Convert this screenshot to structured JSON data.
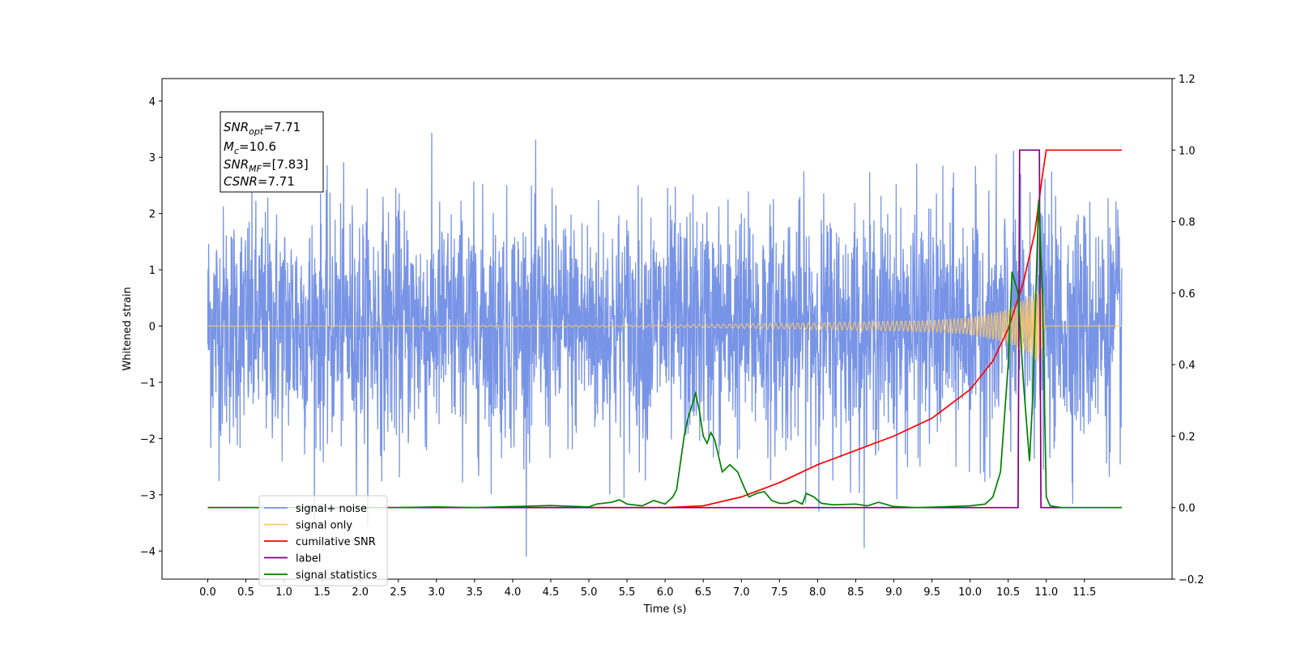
{
  "chart_data": {
    "type": "line",
    "title": "",
    "xlabel": "Time (s)",
    "ylabel": "Whitened strain",
    "xlim": [
      -0.6,
      12.65
    ],
    "ylim": [
      -4.5,
      4.4
    ],
    "y2lim": [
      -0.2,
      1.2
    ],
    "xticks": [
      "0.0",
      "0.5",
      "1.0",
      "1.5",
      "2.0",
      "2.5",
      "3.0",
      "3.5",
      "4.0",
      "4.5",
      "5.0",
      "5.5",
      "6.0",
      "6.5",
      "7.0",
      "7.5",
      "8.0",
      "8.5",
      "9.0",
      "9.5",
      "10.0",
      "10.5",
      "11.0",
      "11.5"
    ],
    "yticks": [
      "4",
      "3",
      "2",
      "1",
      "0",
      "−1",
      "−2",
      "−3",
      "−4"
    ],
    "y2ticks": [
      "1.2",
      "1.0",
      "0.8",
      "0.6",
      "0.4",
      "0.2",
      "0.0",
      "−0.2"
    ],
    "grid": false,
    "legend_position": "lower-left",
    "info_box": {
      "snr_opt": {
        "base": "SNR",
        "sub": "opt",
        "value": "=7.71"
      },
      "mc": {
        "base": "M",
        "sub": "c",
        "value": "=10.6"
      },
      "snr_mf": {
        "base": "SNR",
        "sub": "MF",
        "value": "=[7.83]"
      },
      "csnr": {
        "base": "CSNR",
        "sub": "",
        "value": "=7.71"
      }
    },
    "series": [
      {
        "name": "signal+ noise",
        "color": "#7894e6",
        "axis": "left",
        "x_range": [
          0,
          11.99
        ],
        "noise_sigma": 1.0
      },
      {
        "name": "signal only",
        "color": "#ffc966",
        "axis": "left",
        "x_range": [
          0,
          11.99
        ],
        "envelope": [
          [
            0,
            0.0
          ],
          [
            6.0,
            0.02
          ],
          [
            8.0,
            0.06
          ],
          [
            9.5,
            0.1
          ],
          [
            10.0,
            0.15
          ],
          [
            10.5,
            0.3
          ],
          [
            10.8,
            0.55
          ],
          [
            10.95,
            0.7
          ],
          [
            11.0,
            0.0
          ],
          [
            11.99,
            0.0
          ]
        ]
      },
      {
        "name": "cumilative SNR",
        "color": "#ff0000",
        "axis": "right",
        "points": [
          [
            6.0,
            0.0
          ],
          [
            6.5,
            0.005
          ],
          [
            7.0,
            0.03
          ],
          [
            7.5,
            0.07
          ],
          [
            8.0,
            0.12
          ],
          [
            8.5,
            0.16
          ],
          [
            9.0,
            0.2
          ],
          [
            9.5,
            0.25
          ],
          [
            10.0,
            0.33
          ],
          [
            10.3,
            0.41
          ],
          [
            10.5,
            0.5
          ],
          [
            10.7,
            0.63
          ],
          [
            10.85,
            0.77
          ],
          [
            10.95,
            0.93
          ],
          [
            11.0,
            1.0
          ],
          [
            11.99,
            1.0
          ]
        ]
      },
      {
        "name": "label",
        "color": "#800080",
        "axis": "right",
        "points": [
          [
            0,
            0
          ],
          [
            10.63,
            0
          ],
          [
            10.65,
            1
          ],
          [
            10.91,
            1
          ],
          [
            10.93,
            0
          ],
          [
            11.99,
            0
          ]
        ]
      },
      {
        "name": "signal statistics",
        "color": "#008000",
        "axis": "right",
        "points": [
          [
            0,
            0
          ],
          [
            2.5,
            0
          ],
          [
            3.0,
            0.002
          ],
          [
            3.5,
            0
          ],
          [
            4.0,
            0.003
          ],
          [
            4.5,
            0.006
          ],
          [
            5.0,
            0.002
          ],
          [
            5.1,
            0.01
          ],
          [
            5.3,
            0.015
          ],
          [
            5.4,
            0.022
          ],
          [
            5.5,
            0.01
          ],
          [
            5.7,
            0.005
          ],
          [
            5.85,
            0.02
          ],
          [
            6.0,
            0.01
          ],
          [
            6.1,
            0.03
          ],
          [
            6.15,
            0.05
          ],
          [
            6.25,
            0.2
          ],
          [
            6.3,
            0.25
          ],
          [
            6.4,
            0.32
          ],
          [
            6.45,
            0.27
          ],
          [
            6.5,
            0.2
          ],
          [
            6.55,
            0.18
          ],
          [
            6.6,
            0.21
          ],
          [
            6.65,
            0.19
          ],
          [
            6.75,
            0.1
          ],
          [
            6.85,
            0.12
          ],
          [
            6.95,
            0.1
          ],
          [
            7.05,
            0.05
          ],
          [
            7.1,
            0.03
          ],
          [
            7.2,
            0.04
          ],
          [
            7.3,
            0.045
          ],
          [
            7.4,
            0.02
          ],
          [
            7.5,
            0.012
          ],
          [
            7.6,
            0.012
          ],
          [
            7.7,
            0.02
          ],
          [
            7.8,
            0.01
          ],
          [
            7.85,
            0.04
          ],
          [
            7.95,
            0.03
          ],
          [
            8.05,
            0.012
          ],
          [
            8.2,
            0.008
          ],
          [
            8.5,
            0.01
          ],
          [
            8.65,
            0.005
          ],
          [
            8.8,
            0.015
          ],
          [
            9.0,
            0.003
          ],
          [
            9.3,
            0
          ],
          [
            9.6,
            0.002
          ],
          [
            10.0,
            0.005
          ],
          [
            10.2,
            0.01
          ],
          [
            10.3,
            0.03
          ],
          [
            10.4,
            0.1
          ],
          [
            10.5,
            0.4
          ],
          [
            10.55,
            0.66
          ],
          [
            10.63,
            0.6
          ],
          [
            10.7,
            0.35
          ],
          [
            10.78,
            0.13
          ],
          [
            10.82,
            0.3
          ],
          [
            10.9,
            0.86
          ],
          [
            10.95,
            0.6
          ],
          [
            11.0,
            0.03
          ],
          [
            11.05,
            0.005
          ],
          [
            11.2,
            0
          ],
          [
            11.99,
            0
          ]
        ]
      }
    ]
  }
}
